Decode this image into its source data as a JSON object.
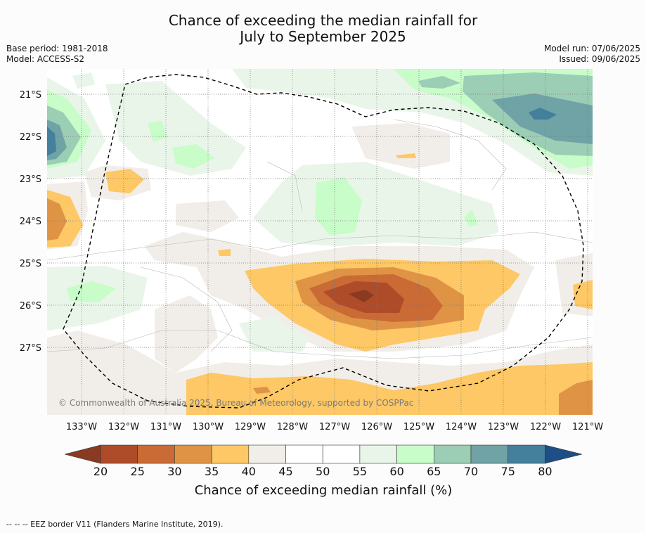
{
  "title_line1": "Chance of exceeding the median rainfall for",
  "title_line2": "July to September 2025",
  "base_period": "Base period: 1981-2018",
  "model": "Model: ACCESS-S2",
  "model_run": "Model run: 07/06/2025",
  "issued": "Issued: 09/06/2025",
  "copyright": "© Commonwealth of Australia 2025, Bureau of Meteorology, supported by COSPPac",
  "lon_labels": [
    "133°W",
    "132°W",
    "131°W",
    "130°W",
    "129°W",
    "128°W",
    "127°W",
    "126°W",
    "125°W",
    "124°W",
    "123°W",
    "122°W",
    "121°W"
  ],
  "lat_labels": [
    "21°S",
    "22°S",
    "23°S",
    "24°S",
    "25°S",
    "26°S",
    "27°S"
  ],
  "colorbar": {
    "ticks": [
      "20",
      "25",
      "30",
      "35",
      "40",
      "45",
      "50",
      "55",
      "60",
      "65",
      "70",
      "75",
      "80"
    ],
    "colors": [
      "#ae4b29",
      "#ca6a35",
      "#df9445",
      "#fdc865",
      "#f1ede8",
      "#ffffff",
      "#ffffff",
      "#e9f5e9",
      "#c8fcc8",
      "#9ccdb5",
      "#6fa3a6",
      "#447f9c"
    ],
    "under_color": "#8a3a20",
    "over_color": "#1d4f86",
    "label": "Chance of exceeding median rainfall (%)"
  },
  "footer": "--  --  -- EEZ border V11 (Flanders Marine Institute, 2019)."
}
